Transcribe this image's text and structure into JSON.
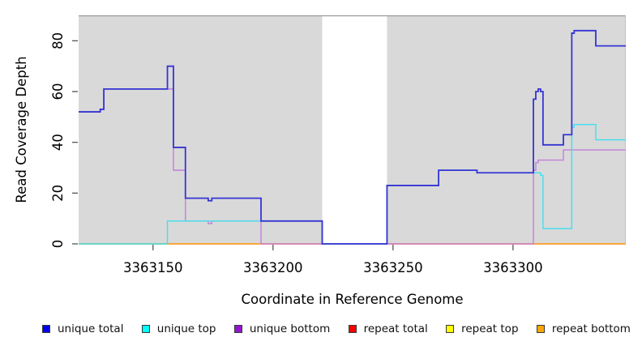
{
  "figure": {
    "xlabel": "Coordinate in Reference Genome",
    "ylabel": "Read Coverage Depth"
  },
  "chart_data": {
    "type": "line",
    "step": true,
    "title": "",
    "xlabel": "Coordinate in Reference Genome",
    "ylabel": "Read Coverage Depth",
    "xlim": [
      3363119,
      3363347
    ],
    "ylim": [
      0,
      90
    ],
    "x_ticks": [
      3363150,
      3363200,
      3363250,
      3363300
    ],
    "y_ticks": [
      0,
      20,
      40,
      60,
      80
    ],
    "grid": false,
    "legend_position": "bottom",
    "plot_bg_color": "#d9d9d9",
    "masked_region": {
      "from": 3363220.5,
      "to": 3363247.5,
      "color": "#ffffff"
    },
    "series": [
      {
        "name": "repeat total",
        "color": "#e62e2e",
        "points": [
          [
            3363119,
            0
          ],
          [
            3363347,
            0
          ]
        ]
      },
      {
        "name": "repeat top",
        "color": "#eded4a",
        "points": [
          [
            3363119,
            0
          ],
          [
            3363347,
            0
          ]
        ]
      },
      {
        "name": "repeat bottom",
        "color": "#ff9d2e",
        "points": [
          [
            3363119,
            0
          ],
          [
            3363347,
            0
          ]
        ]
      },
      {
        "name": "unique bottom",
        "color": "#c47fd9",
        "points": [
          [
            3363119,
            52
          ],
          [
            3363128,
            53
          ],
          [
            3363129.5,
            61
          ],
          [
            3363158.5,
            29
          ],
          [
            3363163.5,
            9
          ],
          [
            3363173,
            8
          ],
          [
            3363174.5,
            9
          ],
          [
            3363195,
            0
          ],
          [
            3363308.5,
            29
          ],
          [
            3363309.5,
            32
          ],
          [
            3363310.5,
            33
          ],
          [
            3363321,
            37
          ],
          [
            3363347,
            37
          ]
        ]
      },
      {
        "name": "unique top",
        "color": "#40dff0",
        "points": [
          [
            3363119,
            0
          ],
          [
            3363156,
            9
          ],
          [
            3363220.5,
            0
          ],
          [
            3363247.5,
            23
          ],
          [
            3363269,
            29
          ],
          [
            3363285,
            28
          ],
          [
            3363311.5,
            27
          ],
          [
            3363312.5,
            6
          ],
          [
            3363324.5,
            46
          ],
          [
            3363325.5,
            47
          ],
          [
            3363334.5,
            41
          ],
          [
            3363347,
            41
          ]
        ]
      },
      {
        "name": "unique total",
        "color": "#3534d4",
        "points": [
          [
            3363119,
            52
          ],
          [
            3363128,
            53
          ],
          [
            3363129.5,
            61
          ],
          [
            3363156,
            70
          ],
          [
            3363158.5,
            38
          ],
          [
            3363163.5,
            18
          ],
          [
            3363173,
            17
          ],
          [
            3363174.5,
            18
          ],
          [
            3363195,
            9
          ],
          [
            3363220.5,
            0
          ],
          [
            3363247.5,
            23
          ],
          [
            3363269,
            29
          ],
          [
            3363285,
            28
          ],
          [
            3363308.5,
            57
          ],
          [
            3363309.5,
            60
          ],
          [
            3363310.5,
            61
          ],
          [
            3363311.5,
            60
          ],
          [
            3363312.5,
            39
          ],
          [
            3363321,
            43
          ],
          [
            3363324.5,
            83
          ],
          [
            3363325.5,
            84
          ],
          [
            3363334.5,
            78
          ],
          [
            3363347,
            78
          ]
        ]
      }
    ]
  },
  "legend": {
    "items": [
      {
        "label": "unique total",
        "color": "#0000ee"
      },
      {
        "label": "unique top",
        "color": "#00ffff"
      },
      {
        "label": "unique bottom",
        "color": "#9414d3"
      },
      {
        "label": "repeat total",
        "color": "#ff0000"
      },
      {
        "label": "repeat top",
        "color": "#ffff00"
      },
      {
        "label": "repeat bottom",
        "color": "#ffa500"
      }
    ]
  }
}
